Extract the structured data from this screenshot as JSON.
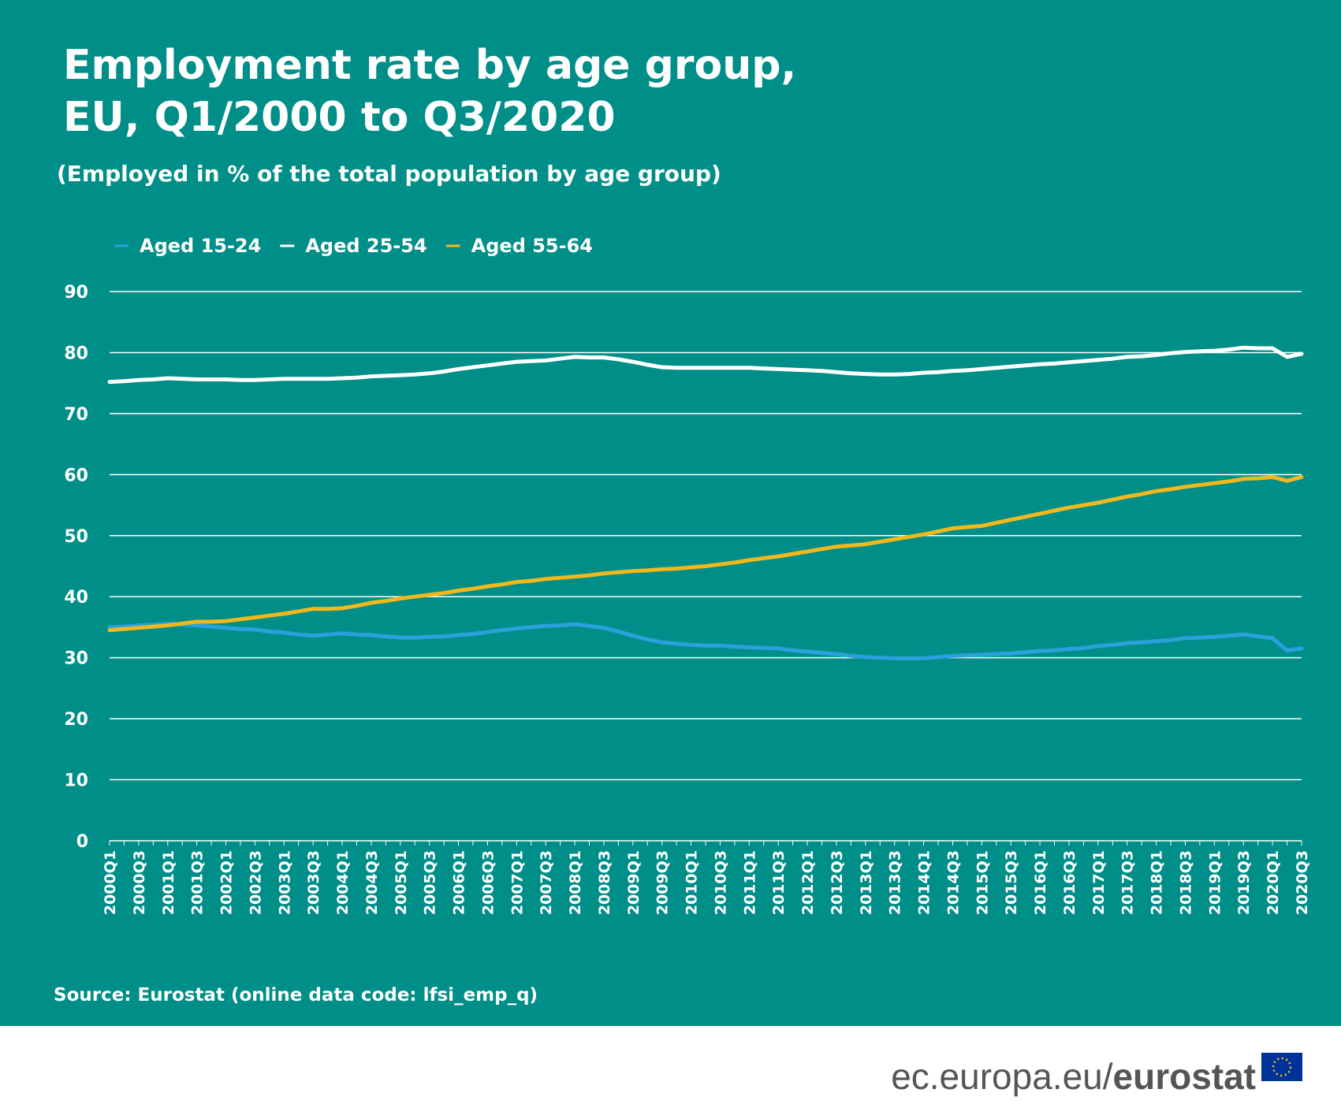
{
  "chart_data": {
    "type": "line",
    "title": [
      "Employment rate by age group,",
      "EU, Q1/2000 to Q3/2020"
    ],
    "subtitle": "(Employed in % of the total population by age group)",
    "source": "Source: Eurostat (online data code: lfsi_emp_q)",
    "footer_site": "ec.europa.eu/",
    "footer_brand": "eurostat",
    "categories": [
      "2000Q1",
      null,
      "2000Q3",
      null,
      "2001Q1",
      null,
      "2001Q3",
      null,
      "2002Q1",
      null,
      "2002Q3",
      null,
      "2003Q1",
      null,
      "2003Q3",
      null,
      "2004Q1",
      null,
      "2004Q3",
      null,
      "2005Q1",
      null,
      "2005Q3",
      null,
      "2006Q1",
      null,
      "2006Q3",
      null,
      "2007Q1",
      null,
      "2007Q3",
      null,
      "2008Q1",
      null,
      "2008Q3",
      null,
      "2009Q1",
      null,
      "2009Q3",
      null,
      "2010Q1",
      null,
      "2010Q3",
      null,
      "2011Q1",
      null,
      "2011Q3",
      null,
      "2012Q1",
      null,
      "2012Q3",
      null,
      "2013Q1",
      null,
      "2013Q3",
      null,
      "2014Q1",
      null,
      "2014Q3",
      null,
      "2015Q1",
      null,
      "2015Q3",
      null,
      "2016Q1",
      null,
      "2016Q3",
      null,
      "2017Q1",
      null,
      "2017Q3",
      null,
      "2018Q1",
      null,
      "2018Q3",
      null,
      "2019Q1",
      null,
      "2019Q3",
      null,
      "2020Q1",
      null,
      "2020Q3"
    ],
    "series": [
      {
        "name": "Aged 15-24",
        "color": "#2aa0dc",
        "values": [
          35.0,
          35.1,
          35.3,
          35.4,
          35.6,
          35.4,
          35.3,
          35.1,
          34.9,
          34.7,
          34.6,
          34.3,
          34.1,
          33.8,
          33.6,
          33.8,
          34.0,
          33.8,
          33.7,
          33.5,
          33.3,
          33.3,
          33.4,
          33.5,
          33.7,
          33.9,
          34.2,
          34.5,
          34.8,
          35.0,
          35.2,
          35.3,
          35.5,
          35.2,
          34.9,
          34.3,
          33.6,
          33.0,
          32.5,
          32.3,
          32.1,
          32.0,
          32.0,
          31.8,
          31.7,
          31.6,
          31.5,
          31.2,
          31.0,
          30.8,
          30.6,
          30.3,
          30.1,
          30.0,
          29.9,
          29.9,
          29.9,
          30.1,
          30.3,
          30.4,
          30.5,
          30.6,
          30.7,
          30.9,
          31.1,
          31.2,
          31.4,
          31.6,
          31.9,
          32.1,
          32.4,
          32.5,
          32.7,
          32.9,
          33.2,
          33.3,
          33.4,
          33.6,
          33.8,
          33.5,
          33.2,
          31.2,
          31.5
        ]
      },
      {
        "name": "Aged 25-54",
        "color": "#ffffff",
        "values": [
          75.2,
          75.3,
          75.5,
          75.6,
          75.8,
          75.7,
          75.6,
          75.6,
          75.6,
          75.5,
          75.5,
          75.6,
          75.7,
          75.7,
          75.7,
          75.7,
          75.8,
          75.9,
          76.1,
          76.2,
          76.3,
          76.4,
          76.6,
          76.9,
          77.3,
          77.6,
          77.9,
          78.2,
          78.5,
          78.6,
          78.7,
          79.0,
          79.3,
          79.2,
          79.2,
          78.9,
          78.5,
          78.0,
          77.6,
          77.5,
          77.5,
          77.5,
          77.5,
          77.5,
          77.5,
          77.4,
          77.3,
          77.2,
          77.1,
          77.0,
          76.8,
          76.6,
          76.5,
          76.4,
          76.4,
          76.5,
          76.7,
          76.8,
          77.0,
          77.1,
          77.3,
          77.5,
          77.7,
          77.9,
          78.1,
          78.2,
          78.4,
          78.6,
          78.8,
          79.0,
          79.3,
          79.4,
          79.6,
          79.9,
          80.1,
          80.2,
          80.3,
          80.5,
          80.8,
          80.7,
          80.7,
          79.3,
          79.8
        ]
      },
      {
        "name": "Aged 55-64",
        "color": "#f2b81c",
        "values": [
          34.5,
          34.7,
          34.9,
          35.1,
          35.3,
          35.6,
          35.9,
          35.9,
          36.0,
          36.3,
          36.6,
          36.9,
          37.2,
          37.6,
          38.0,
          38.0,
          38.1,
          38.5,
          39.0,
          39.3,
          39.7,
          40.0,
          40.3,
          40.6,
          41.0,
          41.3,
          41.7,
          42.0,
          42.4,
          42.6,
          42.9,
          43.1,
          43.3,
          43.5,
          43.8,
          44.0,
          44.2,
          44.3,
          44.5,
          44.6,
          44.8,
          45.0,
          45.3,
          45.6,
          46.0,
          46.3,
          46.6,
          47.0,
          47.4,
          47.8,
          48.2,
          48.4,
          48.6,
          49.0,
          49.4,
          49.8,
          50.2,
          50.7,
          51.2,
          51.4,
          51.6,
          52.1,
          52.6,
          53.1,
          53.6,
          54.1,
          54.6,
          55.0,
          55.4,
          55.9,
          56.4,
          56.8,
          57.3,
          57.6,
          58.0,
          58.3,
          58.6,
          58.9,
          59.3,
          59.4,
          59.6,
          59.0,
          59.6
        ]
      }
    ],
    "ylim": [
      0,
      90
    ],
    "yticks": [
      0,
      10,
      20,
      30,
      40,
      50,
      60,
      70,
      80,
      90
    ],
    "grid": true,
    "legend": "top-left"
  }
}
